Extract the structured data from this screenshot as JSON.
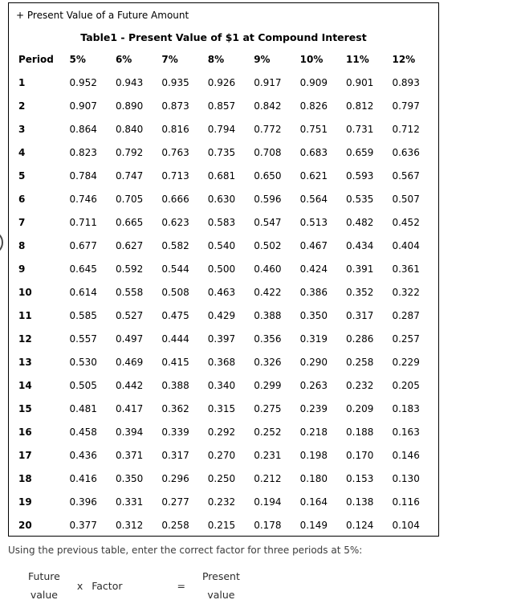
{
  "panel": {
    "section_header": "+ Present Value of a Future Amount",
    "title": "Table1 - Present Value of $1 at Compound Interest"
  },
  "chart_data": {
    "type": "table",
    "title": "Table1 - Present Value of $1 at Compound Interest",
    "columns": [
      "Period",
      "5%",
      "6%",
      "7%",
      "8%",
      "9%",
      "10%",
      "11%",
      "12%"
    ],
    "rows": [
      [
        "1",
        "0.952",
        "0.943",
        "0.935",
        "0.926",
        "0.917",
        "0.909",
        "0.901",
        "0.893"
      ],
      [
        "2",
        "0.907",
        "0.890",
        "0.873",
        "0.857",
        "0.842",
        "0.826",
        "0.812",
        "0.797"
      ],
      [
        "3",
        "0.864",
        "0.840",
        "0.816",
        "0.794",
        "0.772",
        "0.751",
        "0.731",
        "0.712"
      ],
      [
        "4",
        "0.823",
        "0.792",
        "0.763",
        "0.735",
        "0.708",
        "0.683",
        "0.659",
        "0.636"
      ],
      [
        "5",
        "0.784",
        "0.747",
        "0.713",
        "0.681",
        "0.650",
        "0.621",
        "0.593",
        "0.567"
      ],
      [
        "6",
        "0.746",
        "0.705",
        "0.666",
        "0.630",
        "0.596",
        "0.564",
        "0.535",
        "0.507"
      ],
      [
        "7",
        "0.711",
        "0.665",
        "0.623",
        "0.583",
        "0.547",
        "0.513",
        "0.482",
        "0.452"
      ],
      [
        "8",
        "0.677",
        "0.627",
        "0.582",
        "0.540",
        "0.502",
        "0.467",
        "0.434",
        "0.404"
      ],
      [
        "9",
        "0.645",
        "0.592",
        "0.544",
        "0.500",
        "0.460",
        "0.424",
        "0.391",
        "0.361"
      ],
      [
        "10",
        "0.614",
        "0.558",
        "0.508",
        "0.463",
        "0.422",
        "0.386",
        "0.352",
        "0.322"
      ],
      [
        "11",
        "0.585",
        "0.527",
        "0.475",
        "0.429",
        "0.388",
        "0.350",
        "0.317",
        "0.287"
      ],
      [
        "12",
        "0.557",
        "0.497",
        "0.444",
        "0.397",
        "0.356",
        "0.319",
        "0.286",
        "0.257"
      ],
      [
        "13",
        "0.530",
        "0.469",
        "0.415",
        "0.368",
        "0.326",
        "0.290",
        "0.258",
        "0.229"
      ],
      [
        "14",
        "0.505",
        "0.442",
        "0.388",
        "0.340",
        "0.299",
        "0.263",
        "0.232",
        "0.205"
      ],
      [
        "15",
        "0.481",
        "0.417",
        "0.362",
        "0.315",
        "0.275",
        "0.239",
        "0.209",
        "0.183"
      ],
      [
        "16",
        "0.458",
        "0.394",
        "0.339",
        "0.292",
        "0.252",
        "0.218",
        "0.188",
        "0.163"
      ],
      [
        "17",
        "0.436",
        "0.371",
        "0.317",
        "0.270",
        "0.231",
        "0.198",
        "0.170",
        "0.146"
      ],
      [
        "18",
        "0.416",
        "0.350",
        "0.296",
        "0.250",
        "0.212",
        "0.180",
        "0.153",
        "0.130"
      ],
      [
        "19",
        "0.396",
        "0.331",
        "0.277",
        "0.232",
        "0.194",
        "0.164",
        "0.138",
        "0.116"
      ],
      [
        "20",
        "0.377",
        "0.312",
        "0.258",
        "0.215",
        "0.178",
        "0.149",
        "0.124",
        "0.104"
      ]
    ]
  },
  "question": {
    "text": "Using the previous table, enter the correct factor for three periods at 5%:"
  },
  "equation": {
    "future_line1": "Future",
    "future_line2": "value",
    "multiply": "x",
    "factor": "Factor",
    "equals": "=",
    "present_line1": "Present",
    "present_line2": "value"
  }
}
